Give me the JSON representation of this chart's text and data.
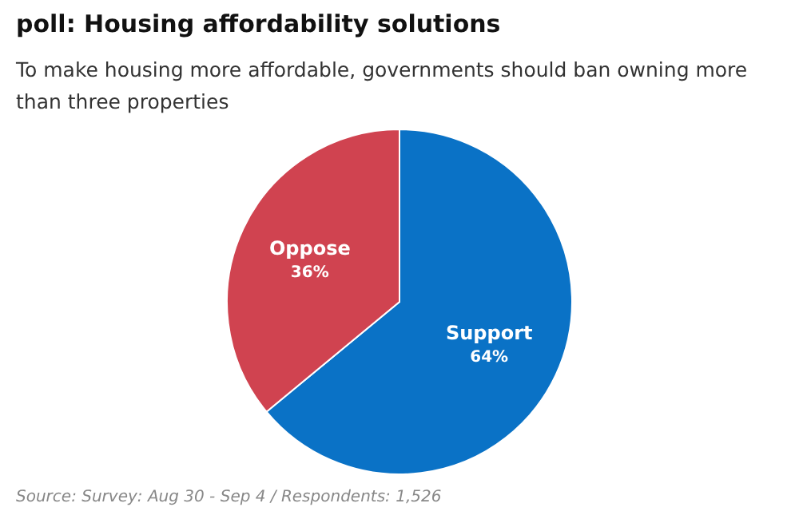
{
  "chart_data": {
    "type": "pie",
    "title": "poll: Housing affordability solutions",
    "subtitle": "To make housing more affordable, governments should ban owning more than three properties",
    "categories": [
      "Support",
      "Oppose"
    ],
    "values": [
      64,
      36
    ],
    "colors": [
      "#0a72c6",
      "#d04350"
    ],
    "value_labels": [
      "64%",
      "36%"
    ],
    "annotations": [
      "Source: Survey: Aug 30 - Sep 4 / Respondents: 1,526"
    ]
  }
}
